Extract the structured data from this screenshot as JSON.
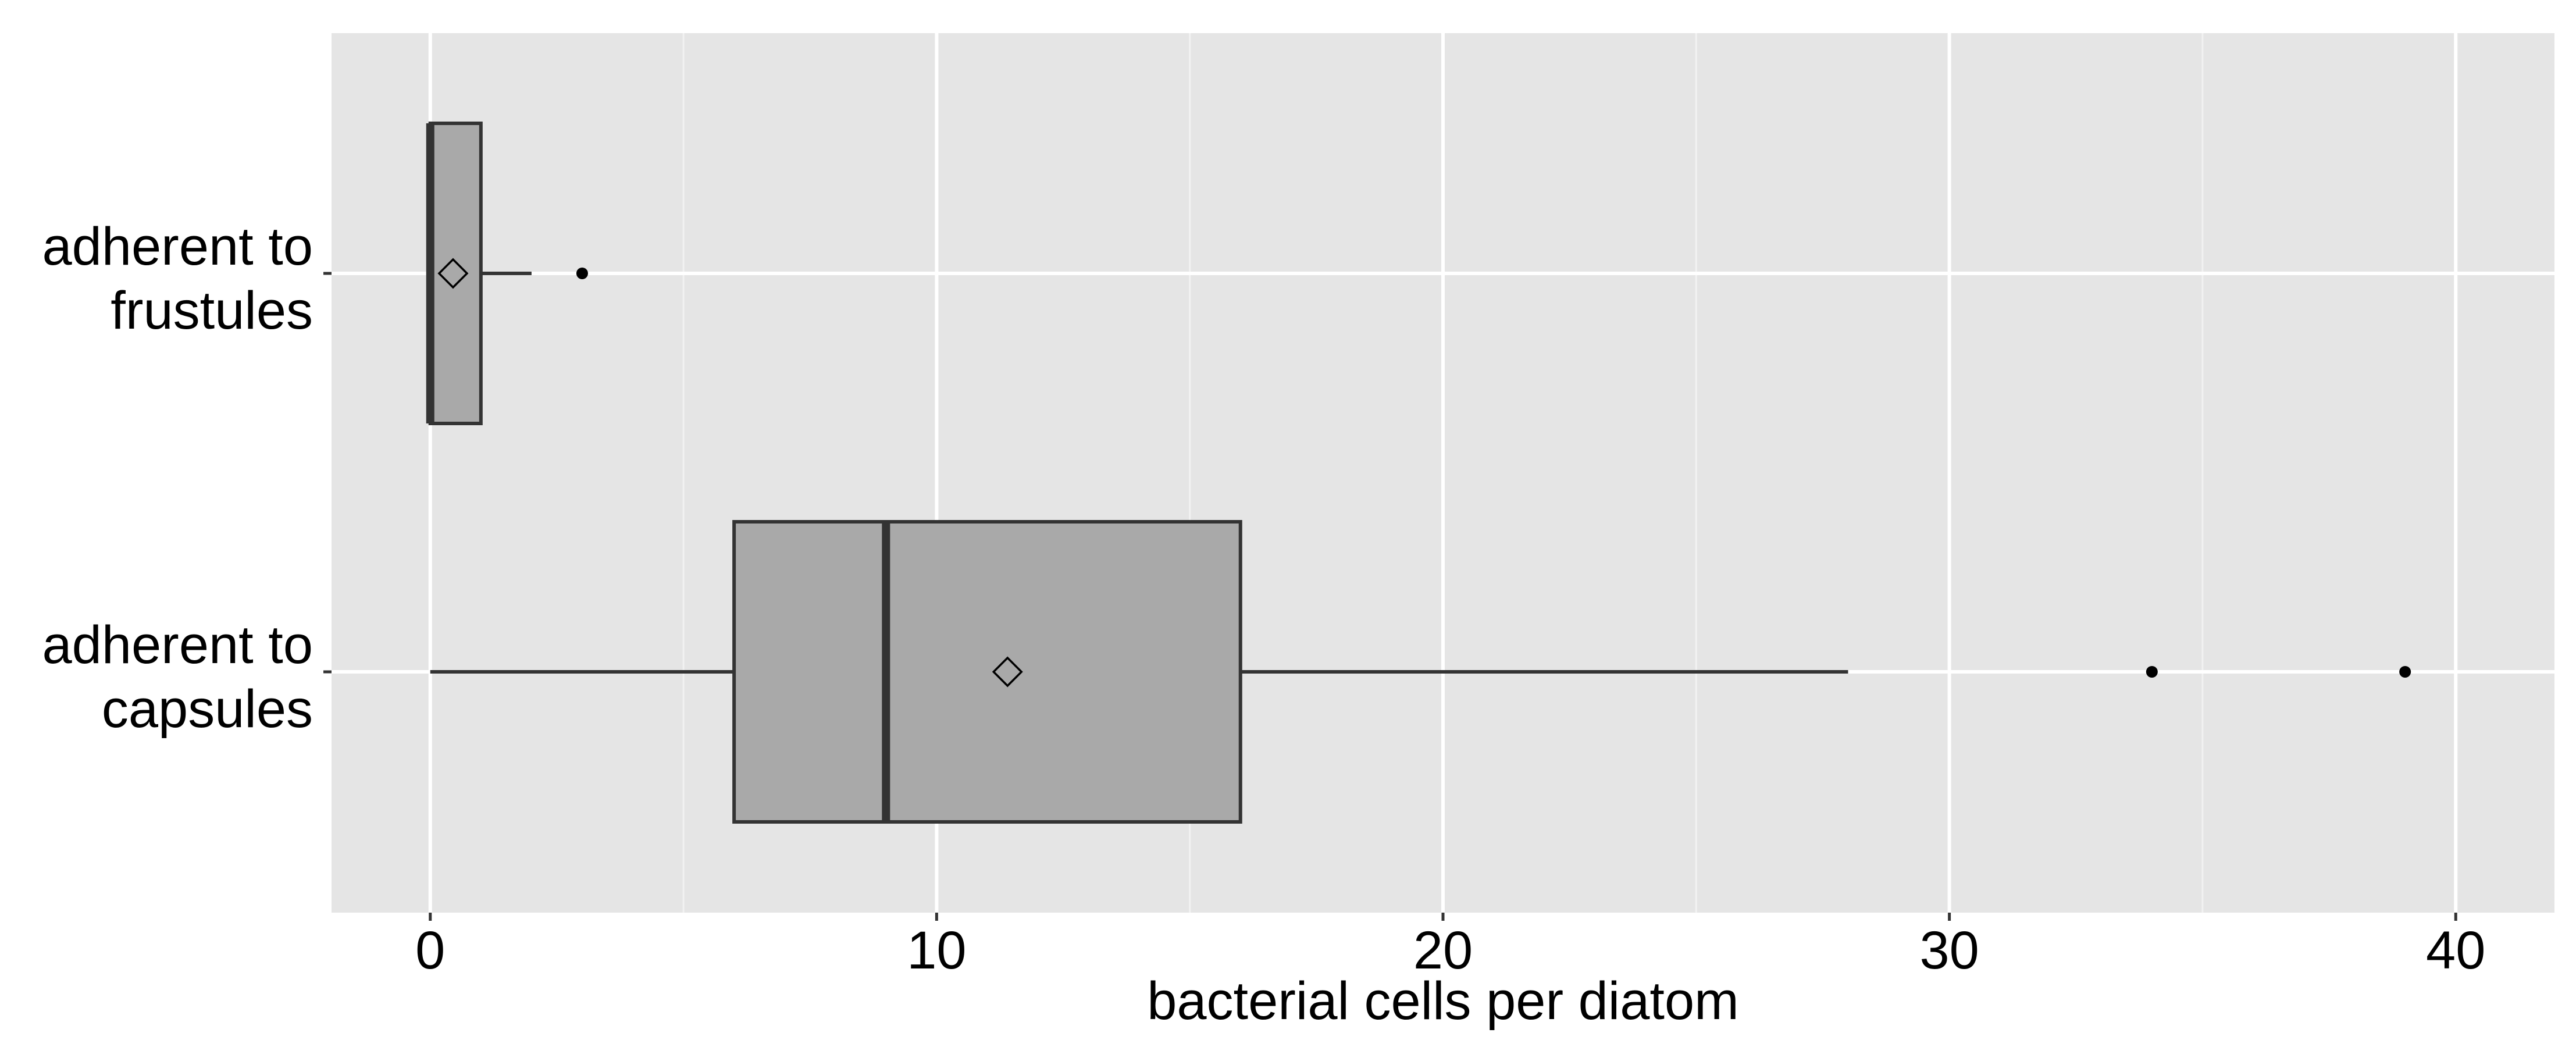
{
  "chart_data": {
    "type": "boxplot",
    "orientation": "horizontal",
    "title": "",
    "xlabel": "bacterial cells per diatom",
    "ylabel": "",
    "xlim": [
      -1.95,
      41.95
    ],
    "xticks": [
      0,
      10,
      20,
      30,
      40
    ],
    "xtick_labels": [
      "0",
      "10",
      "20",
      "30",
      "40"
    ],
    "grid": true,
    "legend": "none",
    "categories": [
      {
        "label_lines": [
          "adherent to",
          "frustules"
        ],
        "whisker_low": 0,
        "q1": 0,
        "median": 0,
        "q3": 1,
        "whisker_high": 2,
        "mean": 0.45,
        "outliers": [
          3
        ]
      },
      {
        "label_lines": [
          "adherent to",
          "capsules"
        ],
        "whisker_low": 0,
        "q1": 6,
        "median": 9,
        "q3": 16,
        "whisker_high": 28,
        "mean": 11.4,
        "outliers": [
          34,
          39
        ]
      }
    ],
    "colors": {
      "panel": "#e5e5e5",
      "grid_major": "#ffffff",
      "grid_minor": "#f2f2f2",
      "box_fill": "#a9a9a9",
      "box_line": "#333333",
      "text": "#000000"
    }
  }
}
